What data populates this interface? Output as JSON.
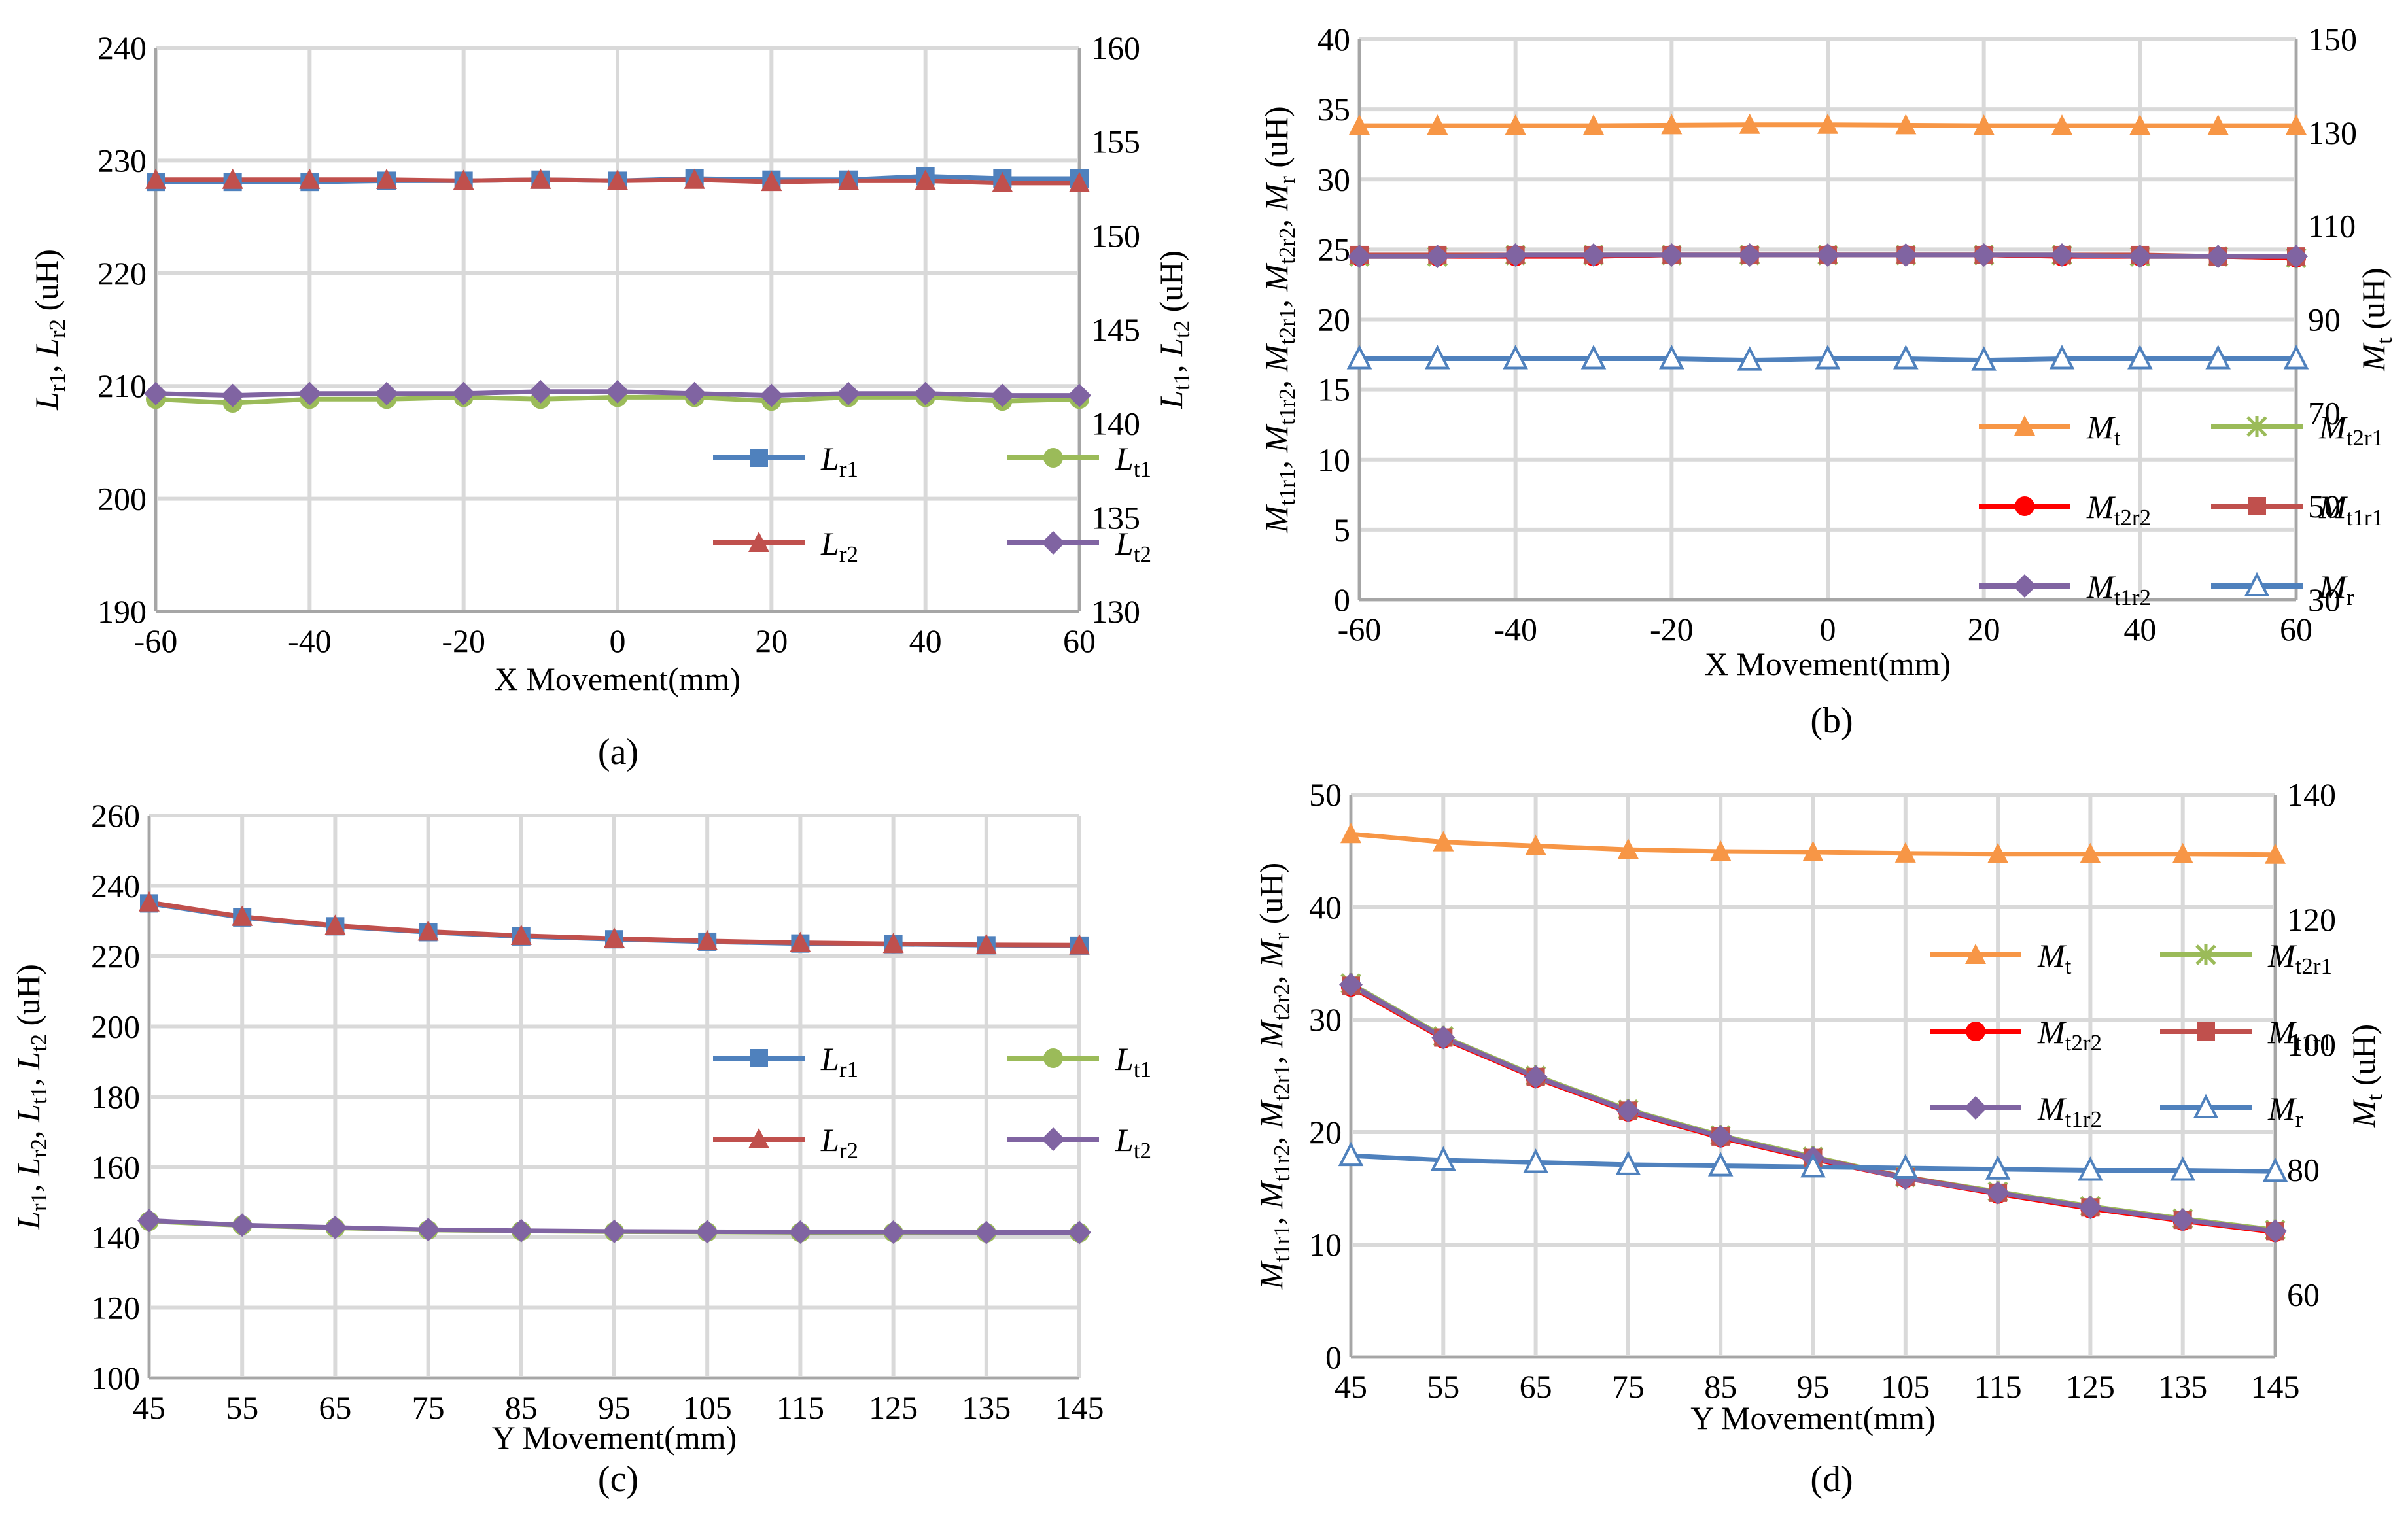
{
  "colors": {
    "blue": "#4F81BD",
    "red": "#C0504D",
    "green": "#9BBB59",
    "purple": "#8064A2",
    "orange": "#F79646",
    "bright_red": "#FF0000",
    "grid": "#D9D9D9"
  },
  "chart_data": [
    {
      "id": "a",
      "type": "line",
      "caption": "(a)",
      "xlabel": "X Movement(mm)",
      "ylabel_left": "Lr1, Lr2 (uH)",
      "ylabel_right": "Lt1, Lt2 (uH)",
      "x": [
        -60,
        -50,
        -40,
        -30,
        -20,
        -10,
        0,
        10,
        20,
        30,
        40,
        50,
        60
      ],
      "x_ticks": [
        "-60",
        "-40",
        "-20",
        "0",
        "20",
        "40",
        "60"
      ],
      "ylim_left": [
        190,
        240
      ],
      "ylim_right": [
        130,
        160
      ],
      "y_ticks_left": [
        "190",
        "200",
        "210",
        "220",
        "230",
        "240"
      ],
      "y_ticks_right": [
        "130",
        "135",
        "140",
        "145",
        "150",
        "155",
        "160"
      ],
      "series": [
        {
          "key": "Lr1",
          "name": "L",
          "sub": "r1",
          "axis": "left",
          "color": "blue",
          "marker": "square",
          "values": [
            228.1,
            228.1,
            228.1,
            228.2,
            228.2,
            228.3,
            228.2,
            228.4,
            228.3,
            228.3,
            228.6,
            228.4,
            228.4
          ]
        },
        {
          "key": "Lr2",
          "name": "L",
          "sub": "r2",
          "axis": "left",
          "color": "red",
          "marker": "triangle",
          "values": [
            228.3,
            228.3,
            228.3,
            228.3,
            228.2,
            228.3,
            228.2,
            228.3,
            228.1,
            228.2,
            228.2,
            228.0,
            228.0
          ]
        },
        {
          "key": "Lt1",
          "name": "L",
          "sub": "t1",
          "axis": "right",
          "color": "green",
          "marker": "circle",
          "values": [
            141.3,
            141.1,
            141.3,
            141.3,
            141.4,
            141.3,
            141.4,
            141.4,
            141.2,
            141.4,
            141.4,
            141.2,
            141.3
          ]
        },
        {
          "key": "Lt2",
          "name": "L",
          "sub": "t2",
          "axis": "right",
          "color": "purple",
          "marker": "diamond",
          "values": [
            141.6,
            141.5,
            141.6,
            141.6,
            141.6,
            141.7,
            141.7,
            141.6,
            141.5,
            141.6,
            141.6,
            141.5,
            141.5
          ]
        }
      ]
    },
    {
      "id": "b",
      "type": "line",
      "caption": "(b)",
      "xlabel": "X Movement(mm)",
      "ylabel_left": "Mt1r1, Mt1r2, Mt2r1, Mt2r2, Mr (uH)",
      "ylabel_right": "Mt (uH)",
      "x": [
        -60,
        -50,
        -40,
        -30,
        -20,
        -10,
        0,
        10,
        20,
        30,
        40,
        50,
        60
      ],
      "x_ticks": [
        "-60",
        "-40",
        "-20",
        "0",
        "20",
        "40",
        "60"
      ],
      "ylim_left": [
        0,
        40
      ],
      "ylim_right": [
        30,
        150
      ],
      "y_ticks_left": [
        "0",
        "5",
        "10",
        "15",
        "20",
        "25",
        "30",
        "35",
        "40"
      ],
      "y_ticks_right": [
        "30",
        "50",
        "70",
        "90",
        "110",
        "130",
        "150"
      ],
      "series": [
        {
          "key": "Mt",
          "name": "M",
          "sub": "t",
          "axis": "right",
          "color": "orange",
          "marker": "triangle",
          "values": [
            131.5,
            131.5,
            131.5,
            131.5,
            131.6,
            131.7,
            131.7,
            131.6,
            131.5,
            131.5,
            131.5,
            131.5,
            131.5
          ]
        },
        {
          "key": "Mt2r1",
          "name": "M",
          "sub": "t2r1",
          "axis": "left",
          "color": "green",
          "marker": "x",
          "values": [
            24.5,
            24.5,
            24.6,
            24.6,
            24.6,
            24.6,
            24.6,
            24.6,
            24.6,
            24.6,
            24.5,
            24.5,
            24.4
          ]
        },
        {
          "key": "Mt2r2",
          "name": "M",
          "sub": "t2r2",
          "axis": "left",
          "color": "bright_red",
          "marker": "circle",
          "values": [
            24.5,
            24.5,
            24.5,
            24.5,
            24.6,
            24.6,
            24.6,
            24.6,
            24.6,
            24.5,
            24.5,
            24.5,
            24.4
          ]
        },
        {
          "key": "Mt1r1",
          "name": "M",
          "sub": "t1r1",
          "axis": "left",
          "color": "red",
          "marker": "square",
          "values": [
            24.6,
            24.6,
            24.6,
            24.6,
            24.6,
            24.6,
            24.6,
            24.6,
            24.6,
            24.6,
            24.6,
            24.5,
            24.5
          ]
        },
        {
          "key": "Mt1r2",
          "name": "M",
          "sub": "t1r2",
          "axis": "left",
          "color": "purple",
          "marker": "diamond",
          "values": [
            24.5,
            24.5,
            24.6,
            24.6,
            24.6,
            24.6,
            24.6,
            24.6,
            24.6,
            24.6,
            24.5,
            24.5,
            24.5
          ]
        },
        {
          "key": "Mr",
          "name": "M",
          "sub": "r",
          "axis": "left",
          "color": "blue",
          "marker": "triangle-open",
          "values": [
            17.2,
            17.2,
            17.2,
            17.2,
            17.2,
            17.1,
            17.2,
            17.2,
            17.1,
            17.2,
            17.2,
            17.2,
            17.2
          ]
        }
      ]
    },
    {
      "id": "c",
      "type": "line",
      "caption": "(c)",
      "xlabel": "Y Movement(mm)",
      "ylabel_left": "Lr1, Lr2, Lt1, Lt2 (uH)",
      "x": [
        45,
        55,
        65,
        75,
        85,
        95,
        105,
        115,
        125,
        135,
        145
      ],
      "x_ticks": [
        "45",
        "55",
        "65",
        "75",
        "85",
        "95",
        "105",
        "115",
        "125",
        "135",
        "145"
      ],
      "ylim_left": [
        100,
        260
      ],
      "y_ticks_left": [
        "100",
        "120",
        "140",
        "160",
        "180",
        "200",
        "220",
        "240",
        "260"
      ],
      "series": [
        {
          "key": "Lr1",
          "name": "L",
          "sub": "r1",
          "axis": "left",
          "color": "blue",
          "marker": "square",
          "values": [
            235.0,
            231.0,
            228.5,
            226.8,
            225.6,
            224.8,
            224.1,
            223.6,
            223.4,
            223.1,
            223.0
          ]
        },
        {
          "key": "Lr2",
          "name": "L",
          "sub": "r2",
          "axis": "left",
          "color": "red",
          "marker": "triangle",
          "values": [
            235.3,
            231.2,
            228.7,
            227.0,
            225.8,
            225.0,
            224.3,
            223.8,
            223.5,
            223.2,
            223.1
          ]
        },
        {
          "key": "Lt1",
          "name": "L",
          "sub": "t1",
          "axis": "left",
          "color": "green",
          "marker": "circle",
          "values": [
            144.6,
            143.4,
            142.7,
            142.1,
            141.8,
            141.6,
            141.5,
            141.4,
            141.4,
            141.3,
            141.3
          ]
        },
        {
          "key": "Lt2",
          "name": "L",
          "sub": "t2",
          "axis": "left",
          "color": "purple",
          "marker": "diamond",
          "values": [
            144.8,
            143.5,
            142.8,
            142.2,
            141.9,
            141.7,
            141.6,
            141.5,
            141.5,
            141.4,
            141.4
          ]
        }
      ]
    },
    {
      "id": "d",
      "type": "line",
      "caption": "(d)",
      "xlabel": "Y Movement(mm)",
      "ylabel_left": "Mt1r1, Mt1r2, Mt2r1, Mt2r2, Mr (uH)",
      "ylabel_right": "Mt (uH)",
      "x": [
        45,
        55,
        65,
        75,
        85,
        95,
        105,
        115,
        125,
        135,
        145
      ],
      "x_ticks": [
        "45",
        "55",
        "65",
        "75",
        "85",
        "95",
        "105",
        "115",
        "125",
        "135",
        "145"
      ],
      "ylim_left": [
        0,
        50
      ],
      "ylim_right": [
        50,
        140
      ],
      "y_ticks_left": [
        "0",
        "10",
        "20",
        "30",
        "40",
        "50"
      ],
      "y_ticks_right": [
        "60",
        "80",
        "100",
        "120",
        "140"
      ],
      "series": [
        {
          "key": "Mt",
          "name": "M",
          "sub": "t",
          "axis": "right",
          "color": "orange",
          "marker": "triangle",
          "values": [
            133.7,
            132.4,
            131.8,
            131.2,
            130.9,
            130.8,
            130.6,
            130.5,
            130.5,
            130.5,
            130.4
          ]
        },
        {
          "key": "Mt2r1",
          "name": "M",
          "sub": "t2r1",
          "axis": "left",
          "color": "green",
          "marker": "x",
          "values": [
            33.2,
            28.5,
            25.0,
            22.0,
            19.7,
            17.8,
            16.0,
            14.7,
            13.4,
            12.3,
            11.3
          ]
        },
        {
          "key": "Mt2r2",
          "name": "M",
          "sub": "t2r2",
          "axis": "left",
          "color": "bright_red",
          "marker": "circle",
          "values": [
            32.9,
            28.3,
            24.8,
            21.8,
            19.5,
            17.6,
            15.9,
            14.5,
            13.2,
            12.1,
            11.1
          ]
        },
        {
          "key": "Mt1r1",
          "name": "M",
          "sub": "t1r1",
          "axis": "left",
          "color": "red",
          "marker": "square",
          "values": [
            33.0,
            28.4,
            24.9,
            21.9,
            19.6,
            17.7,
            16.0,
            14.6,
            13.3,
            12.2,
            11.2
          ]
        },
        {
          "key": "Mt1r2",
          "name": "M",
          "sub": "t1r2",
          "axis": "left",
          "color": "purple",
          "marker": "diamond",
          "values": [
            33.1,
            28.4,
            24.9,
            21.9,
            19.6,
            17.7,
            15.9,
            14.6,
            13.3,
            12.2,
            11.2
          ]
        },
        {
          "key": "Mr",
          "name": "M",
          "sub": "r",
          "axis": "left",
          "color": "blue",
          "marker": "triangle-open",
          "values": [
            17.9,
            17.5,
            17.3,
            17.1,
            17.0,
            16.9,
            16.8,
            16.7,
            16.6,
            16.6,
            16.5
          ]
        }
      ]
    }
  ]
}
